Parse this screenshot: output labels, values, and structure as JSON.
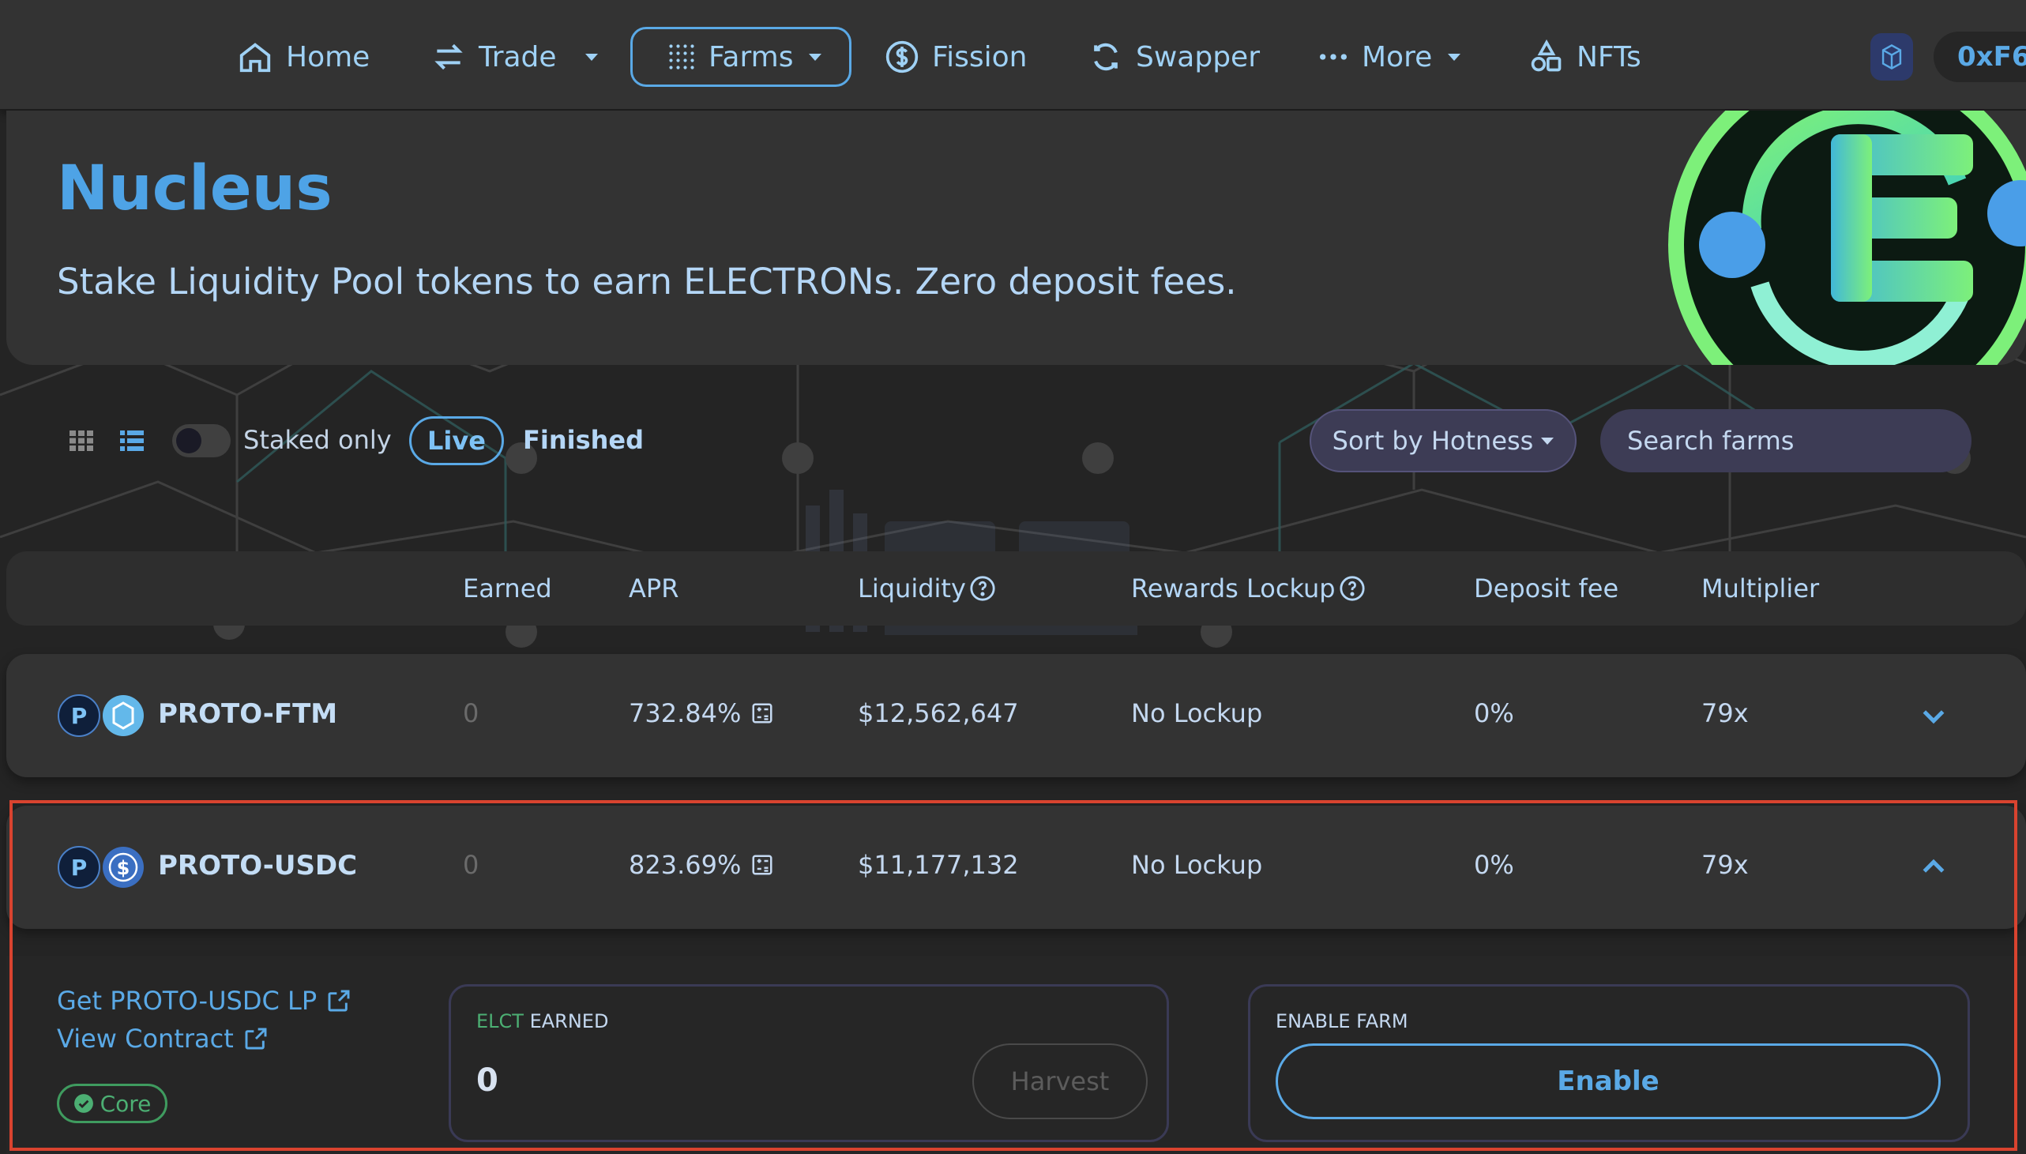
{
  "nav": {
    "items": [
      {
        "label": "Home",
        "icon": "home-icon"
      },
      {
        "label": "Trade",
        "icon": "swap-arrows-icon"
      },
      {
        "label": "Farms",
        "icon": "grid-dots-icon"
      },
      {
        "label": "Fission",
        "icon": "dollar-circle-icon"
      },
      {
        "label": "Swapper",
        "icon": "refresh-icon"
      },
      {
        "label": "More",
        "icon": "ellipsis-icon"
      },
      {
        "label": "NFTs",
        "icon": "shapes-icon"
      }
    ],
    "wallet_address": "0xF6..."
  },
  "hero": {
    "title": "Nucleus",
    "subtitle": "Stake Liquidity Pool tokens to earn ELECTRONs. Zero deposit fees."
  },
  "filters": {
    "staked_only_label": "Staked only",
    "live_label": "Live",
    "finished_label": "Finished",
    "sort_label": "Sort by Hotness",
    "search_placeholder": "Search farms"
  },
  "table": {
    "headers": {
      "earned": "Earned",
      "apr": "APR",
      "liquidity": "Liquidity",
      "rewards_lockup": "Rewards Lockup",
      "deposit_fee": "Deposit fee",
      "multiplier": "Multiplier"
    },
    "rows": [
      {
        "pair": "PROTO-FTM",
        "earned": "0",
        "apr": "732.84%",
        "liquidity": "$12,562,647",
        "lockup": "No Lockup",
        "deposit_fee": "0%",
        "multiplier": "79x"
      },
      {
        "pair": "PROTO-USDC",
        "earned": "0",
        "apr": "823.69%",
        "liquidity": "$11,177,132",
        "lockup": "No Lockup",
        "deposit_fee": "0%",
        "multiplier": "79x"
      }
    ]
  },
  "details": {
    "get_lp_label": "Get PROTO-USDC LP",
    "view_contract_label": "View Contract",
    "core_badge": "Core",
    "earned_panel": {
      "token": "ELCT",
      "label": "EARNED",
      "value": "0",
      "harvest_label": "Harvest"
    },
    "enable_panel": {
      "label": "ENABLE FARM",
      "button_label": "Enable"
    }
  },
  "colors": {
    "accent": "#5aa9e6",
    "highlight": "#d9432f",
    "core_green": "#4caf73"
  }
}
